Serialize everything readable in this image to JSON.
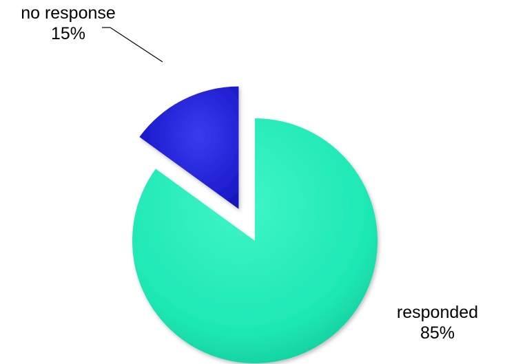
{
  "chart_data": {
    "type": "pie",
    "title": "",
    "categories": [
      "responded",
      "no response"
    ],
    "values": [
      85,
      15
    ],
    "labels": [
      {
        "name": "responded",
        "percent": "85%"
      },
      {
        "name": "no response",
        "percent": "15%"
      }
    ],
    "colors": [
      "#1ee8b4",
      "#1c1ccc"
    ],
    "exploded": true,
    "legend": "none",
    "grid": false
  }
}
